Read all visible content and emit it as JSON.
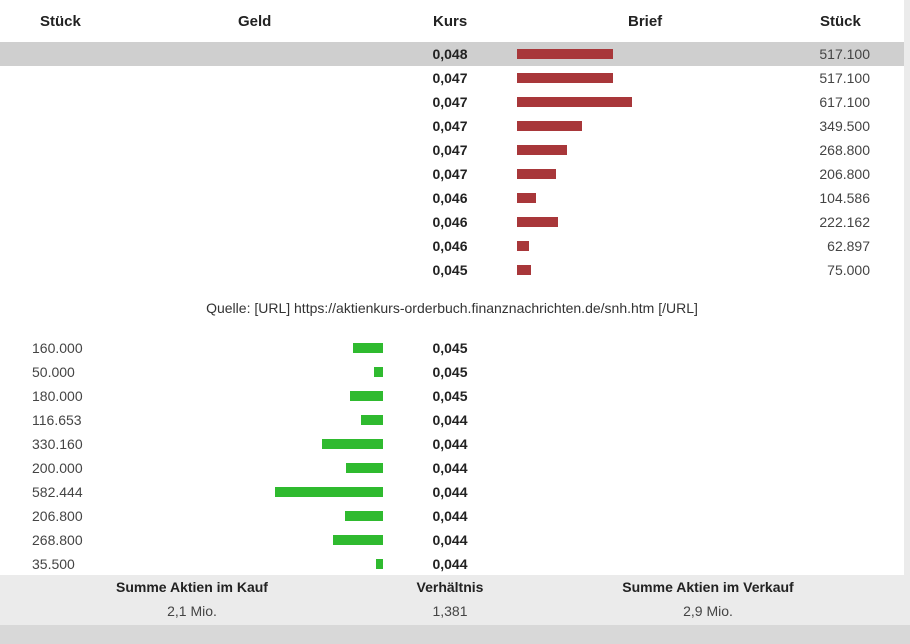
{
  "header": {
    "col_stueck_left": "Stück",
    "col_geld": "Geld",
    "col_kurs": "Kurs",
    "col_brief": "Brief",
    "col_stueck_right": "Stück"
  },
  "brief": {
    "max_qty": 617100,
    "rows": [
      {
        "kurs": "0,048",
        "qty": "517.100",
        "value": 517100
      },
      {
        "kurs": "0,047",
        "qty": "517.100",
        "value": 517100
      },
      {
        "kurs": "0,047",
        "qty": "617.100",
        "value": 617100
      },
      {
        "kurs": "0,047",
        "qty": "349.500",
        "value": 349500
      },
      {
        "kurs": "0,047",
        "qty": "268.800",
        "value": 268800
      },
      {
        "kurs": "0,047",
        "qty": "206.800",
        "value": 206800
      },
      {
        "kurs": "0,046",
        "qty": "104.586",
        "value": 104586
      },
      {
        "kurs": "0,046",
        "qty": "222.162",
        "value": 222162
      },
      {
        "kurs": "0,046",
        "qty": "62.897",
        "value": 62897
      },
      {
        "kurs": "0,045",
        "qty": "75.000",
        "value": 75000
      }
    ]
  },
  "quelle": "Quelle: [URL] https://aktienkurs-orderbuch.finanznachrichten.de/snh.htm [/URL]",
  "geld": {
    "max_qty": 582444,
    "rows": [
      {
        "kurs": "0,045",
        "qty": "160.000",
        "value": 160000
      },
      {
        "kurs": "0,045",
        "qty": "50.000",
        "value": 50000
      },
      {
        "kurs": "0,045",
        "qty": "180.000",
        "value": 180000
      },
      {
        "kurs": "0,044",
        "qty": "116.653",
        "value": 116653
      },
      {
        "kurs": "0,044",
        "qty": "330.160",
        "value": 330160
      },
      {
        "kurs": "0,044",
        "qty": "200.000",
        "value": 200000
      },
      {
        "kurs": "0,044",
        "qty": "582.444",
        "value": 582444
      },
      {
        "kurs": "0,044",
        "qty": "206.800",
        "value": 206800
      },
      {
        "kurs": "0,044",
        "qty": "268.800",
        "value": 268800
      },
      {
        "kurs": "0,044",
        "qty": "35.500",
        "value": 35500
      }
    ]
  },
  "footer": {
    "kauf_label": "Summe Aktien im Kauf",
    "kauf_value": "2,1 Mio.",
    "ratio_label": "Verhältnis",
    "ratio_value": "1,381",
    "verkauf_label": "Summe Aktien im Verkauf",
    "verkauf_value": "2,9 Mio."
  },
  "colors": {
    "ask_bar": "#a8373a",
    "bid_bar": "#2fba2f",
    "highlight_row": "#cfcfcf",
    "footer_bg": "#ebebeb"
  }
}
